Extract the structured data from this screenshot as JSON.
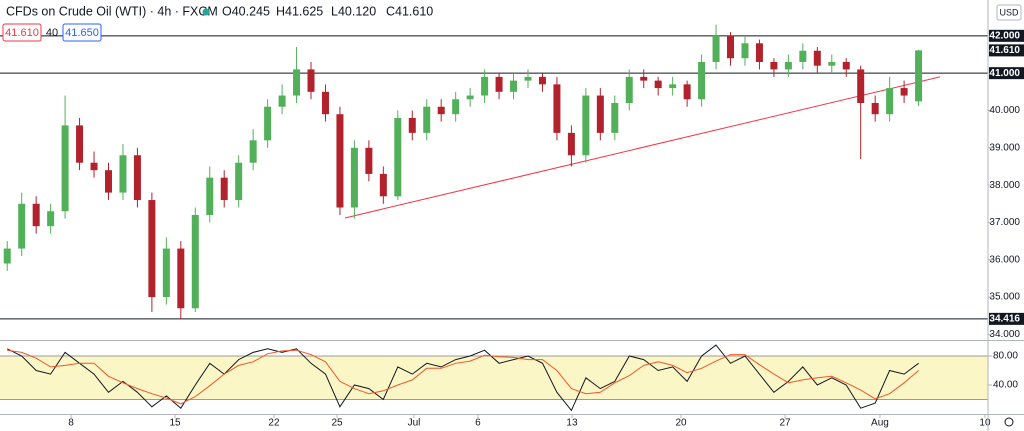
{
  "header": {
    "symbol": "CFDs on Crude Oil (WTI) · 4h · FXCM",
    "ohlc": [
      "O40.245",
      "H41.625",
      "L40.120",
      "C41.610"
    ],
    "sell": "41.610",
    "spread": "40",
    "buy": "41.650",
    "currency": "USD"
  },
  "chart_data": {
    "type": "candlestick",
    "candles": {
      "open": [
        35.9,
        36.3,
        37.5,
        36.9,
        37.3,
        39.6,
        38.6,
        38.4,
        37.8,
        38.8,
        37.6,
        35.0,
        36.3,
        34.7,
        37.2,
        38.2,
        37.6,
        38.6,
        39.2,
        40.1,
        40.4,
        41.1,
        40.5,
        39.9,
        37.4,
        39.0,
        38.3,
        37.7,
        39.8,
        39.4,
        40.1,
        39.9,
        40.3,
        40.4,
        40.9,
        40.5,
        40.8,
        40.9,
        40.7,
        39.4,
        38.8,
        40.4,
        39.4,
        40.2,
        40.9,
        40.8,
        40.6,
        40.7,
        40.3,
        41.3,
        42.0,
        41.4,
        41.8,
        41.3,
        41.1,
        41.3,
        41.6,
        41.2,
        41.3,
        41.1,
        40.2,
        39.9,
        40.6,
        40.245
      ],
      "high": [
        36.5,
        37.8,
        37.7,
        37.5,
        40.4,
        39.8,
        38.9,
        38.6,
        39.1,
        39.0,
        37.8,
        36.6,
        36.5,
        37.4,
        38.5,
        38.4,
        38.8,
        39.5,
        40.3,
        40.7,
        41.7,
        41.3,
        40.7,
        40.1,
        39.2,
        39.2,
        38.5,
        40.0,
        40.0,
        40.3,
        40.3,
        40.5,
        40.6,
        41.1,
        41.0,
        41.0,
        41.1,
        41.0,
        40.9,
        39.6,
        40.6,
        40.6,
        40.4,
        41.1,
        41.1,
        40.9,
        40.9,
        40.8,
        41.5,
        42.3,
        42.1,
        42.0,
        41.9,
        41.4,
        41.5,
        41.8,
        41.7,
        41.5,
        41.4,
        41.2,
        40.4,
        40.9,
        40.8,
        41.625
      ],
      "low": [
        35.7,
        36.1,
        36.7,
        36.7,
        37.1,
        38.4,
        38.2,
        37.6,
        37.6,
        37.4,
        34.6,
        34.8,
        34.4,
        34.6,
        37.0,
        37.4,
        37.4,
        38.4,
        39.0,
        39.9,
        40.2,
        40.3,
        39.7,
        37.2,
        37.1,
        38.1,
        37.5,
        37.6,
        39.2,
        39.2,
        39.7,
        39.7,
        40.1,
        40.2,
        40.3,
        40.3,
        40.6,
        40.5,
        39.2,
        38.5,
        38.6,
        39.2,
        39.2,
        40.0,
        40.6,
        40.4,
        40.4,
        40.1,
        40.1,
        41.1,
        41.2,
        41.2,
        41.1,
        40.9,
        40.9,
        41.1,
        41.0,
        41.0,
        40.9,
        38.7,
        39.7,
        39.7,
        40.2,
        40.12
      ],
      "close": [
        36.3,
        37.5,
        36.9,
        37.3,
        39.6,
        38.6,
        38.4,
        37.8,
        38.8,
        37.6,
        35.0,
        36.3,
        34.7,
        37.2,
        38.2,
        37.6,
        38.6,
        39.2,
        40.1,
        40.4,
        41.1,
        40.5,
        39.9,
        37.4,
        39.0,
        38.3,
        37.7,
        39.8,
        39.4,
        40.1,
        39.9,
        40.3,
        40.4,
        40.9,
        40.5,
        40.8,
        40.9,
        40.7,
        39.4,
        38.8,
        40.4,
        39.4,
        40.2,
        40.9,
        40.8,
        40.6,
        40.7,
        40.3,
        41.3,
        42.0,
        41.4,
        41.8,
        41.3,
        41.1,
        41.3,
        41.6,
        41.2,
        41.3,
        41.1,
        40.2,
        39.9,
        40.6,
        40.4,
        41.61
      ]
    },
    "up_color": "#53b05a",
    "down_color": "#b2222c",
    "xlim": [
      -0.5,
      67.8
    ],
    "xticks": [
      {
        "value": 4.41,
        "label": "8"
      },
      {
        "value": 11.6,
        "label": "15"
      },
      {
        "value": 18.44,
        "label": "22"
      },
      {
        "value": 22.8,
        "label": "25"
      },
      {
        "value": 28.12,
        "label": "Jul"
      },
      {
        "value": 32.54,
        "label": "6"
      },
      {
        "value": 39.04,
        "label": "13"
      },
      {
        "value": 46.58,
        "label": "20"
      },
      {
        "value": 53.77,
        "label": "27"
      },
      {
        "value": 60.33,
        "label": "Aug"
      },
      {
        "value": 67.59,
        "label": "10"
      }
    ],
    "ylim": [
      33.85,
      42.96
    ],
    "yticks": [
      {
        "value": 34,
        "label": "34.000"
      },
      {
        "value": 35,
        "label": "35.000"
      },
      {
        "value": 36,
        "label": "36.000"
      },
      {
        "value": 37,
        "label": "37.000"
      },
      {
        "value": 38,
        "label": "38.000"
      },
      {
        "value": 39,
        "label": "39.000"
      },
      {
        "value": 40,
        "label": "40.000"
      }
    ],
    "levels": [
      {
        "value": 42,
        "label": "42.000"
      },
      {
        "value": 41,
        "label": "41.000"
      },
      {
        "value": 34.416,
        "label": "34.416"
      }
    ],
    "price_label": {
      "value": 41.61,
      "label": "41.610"
    },
    "trendline": {
      "x": [
        23.35,
        64.48
      ],
      "y": [
        37.12,
        40.9
      ],
      "color": "#f23645"
    },
    "stochastic": {
      "ylim": [
        0,
        100
      ],
      "band": [
        20,
        80
      ],
      "band_color": "#fbf6c6",
      "yticks": [
        {
          "value": 80,
          "label": "80.00"
        },
        {
          "value": 40,
          "label": "40.00"
        }
      ],
      "series": [
        {
          "color": "#131722",
          "values": [
            90,
            80,
            60,
            55,
            85,
            70,
            55,
            30,
            45,
            30,
            10,
            25,
            8,
            40,
            70,
            55,
            75,
            85,
            90,
            85,
            90,
            70,
            55,
            10,
            40,
            35,
            20,
            65,
            55,
            70,
            65,
            75,
            80,
            88,
            70,
            75,
            80,
            70,
            30,
            5,
            50,
            35,
            45,
            80,
            75,
            60,
            65,
            45,
            80,
            95,
            70,
            80,
            55,
            30,
            45,
            65,
            40,
            50,
            40,
            8,
            15,
            60,
            55,
            70
          ]
        },
        {
          "color": "#f2572d",
          "values": [
            88,
            85,
            77,
            65,
            67,
            70,
            70,
            52,
            43,
            35,
            28,
            22,
            14,
            24,
            39,
            55,
            67,
            72,
            83,
            87,
            88,
            82,
            72,
            45,
            35,
            28,
            32,
            40,
            47,
            63,
            63,
            70,
            73,
            81,
            79,
            78,
            75,
            75,
            60,
            35,
            28,
            30,
            43,
            53,
            67,
            72,
            67,
            57,
            63,
            73,
            82,
            82,
            68,
            55,
            43,
            47,
            50,
            52,
            43,
            33,
            21,
            28,
            43,
            60
          ]
        }
      ]
    }
  }
}
